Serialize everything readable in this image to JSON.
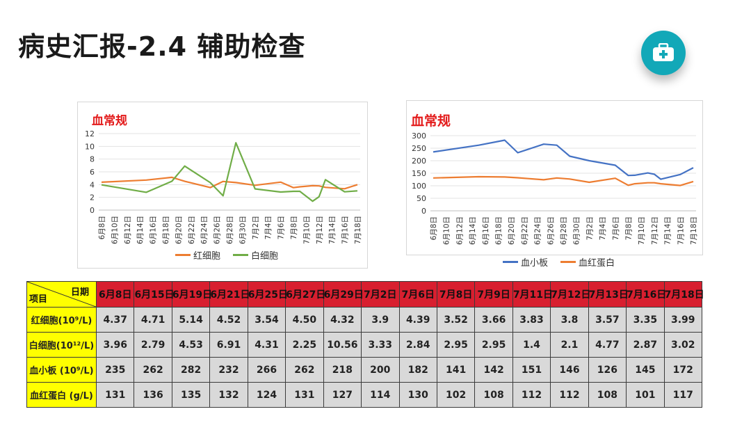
{
  "page": {
    "title": "病史汇报-2.4 辅助检查",
    "icon": "medical-kit-icon"
  },
  "chart_data": [
    {
      "type": "line",
      "title": "血常规",
      "x": [
        "6月8日",
        "6月10日",
        "6月12日",
        "6月14日",
        "6月16日",
        "6月18日",
        "6月20日",
        "6月22日",
        "6月24日",
        "6月26日",
        "6月28日",
        "6月30日",
        "7月2日",
        "7月4日",
        "7月6日",
        "7月8日",
        "7月10日",
        "7月12日",
        "7月14日",
        "7月16日",
        "7月18日"
      ],
      "ylim": [
        0,
        12
      ],
      "yticks": [
        0,
        2,
        4,
        6,
        8,
        10,
        12
      ],
      "grid": true,
      "legend": "bottom",
      "series": [
        {
          "name": "红细胞",
          "color": "#ed7d31",
          "points": [
            [
              0,
              4.37
            ],
            [
              7,
              4.71
            ],
            [
              11,
              5.14
            ],
            [
              13,
              4.52
            ],
            [
              17,
              3.54
            ],
            [
              19,
              4.5
            ],
            [
              21,
              4.32
            ],
            [
              24,
              3.9
            ],
            [
              28,
              4.39
            ],
            [
              30,
              3.52
            ],
            [
              31,
              3.66
            ],
            [
              33,
              3.83
            ],
            [
              34,
              3.8
            ],
            [
              35,
              3.57
            ],
            [
              38,
              3.35
            ],
            [
              40,
              3.99
            ]
          ]
        },
        {
          "name": "白细胞",
          "color": "#70ad47",
          "points": [
            [
              0,
              3.96
            ],
            [
              7,
              2.79
            ],
            [
              11,
              4.53
            ],
            [
              13,
              6.91
            ],
            [
              17,
              4.31
            ],
            [
              19,
              2.25
            ],
            [
              21,
              10.56
            ],
            [
              24,
              3.33
            ],
            [
              28,
              2.84
            ],
            [
              30,
              2.95
            ],
            [
              31,
              2.95
            ],
            [
              33,
              1.4
            ],
            [
              34,
              2.1
            ],
            [
              35,
              4.77
            ],
            [
              38,
              2.87
            ],
            [
              40,
              3.02
            ]
          ]
        }
      ]
    },
    {
      "type": "line",
      "title": "血常规",
      "x": [
        "6月8日",
        "6月10日",
        "6月12日",
        "6月14日",
        "6月16日",
        "6月18日",
        "6月20日",
        "6月22日",
        "6月24日",
        "6月26日",
        "6月28日",
        "6月30日",
        "7月2日",
        "7月4日",
        "7月6日",
        "7月8日",
        "7月10日",
        "7月12日",
        "7月14日",
        "7月16日",
        "7月18日"
      ],
      "ylim": [
        0,
        300
      ],
      "yticks": [
        0,
        50,
        100,
        150,
        200,
        250,
        300
      ],
      "grid": true,
      "legend": "bottom",
      "series": [
        {
          "name": "血小板",
          "color": "#4472c4",
          "points": [
            [
              0,
              235
            ],
            [
              7,
              262
            ],
            [
              11,
              282
            ],
            [
              13,
              232
            ],
            [
              17,
              266
            ],
            [
              19,
              262
            ],
            [
              21,
              218
            ],
            [
              24,
              200
            ],
            [
              28,
              182
            ],
            [
              30,
              141
            ],
            [
              31,
              142
            ],
            [
              33,
              151
            ],
            [
              34,
              146
            ],
            [
              35,
              126
            ],
            [
              38,
              145
            ],
            [
              40,
              172
            ]
          ]
        },
        {
          "name": "血红蛋白",
          "color": "#ed7d31",
          "points": [
            [
              0,
              131
            ],
            [
              7,
              136
            ],
            [
              11,
              135
            ],
            [
              13,
              132
            ],
            [
              17,
              124
            ],
            [
              19,
              131
            ],
            [
              21,
              127
            ],
            [
              24,
              114
            ],
            [
              28,
              130
            ],
            [
              30,
              102
            ],
            [
              31,
              108
            ],
            [
              33,
              112
            ],
            [
              34,
              112
            ],
            [
              35,
              108
            ],
            [
              38,
              101
            ],
            [
              40,
              117
            ]
          ]
        }
      ]
    }
  ],
  "table": {
    "corner_date": "日期",
    "corner_item": "项目",
    "dates": [
      "6月8日",
      "6月15日",
      "6月19日",
      "6月21日",
      "6月25日",
      "6月27日",
      "6月29日",
      "7月2日",
      "7月6日",
      "7月8日",
      "7月9日",
      "7月11日",
      "7月12日",
      "7月13日",
      "7月16日",
      "7月18日"
    ],
    "rows": [
      {
        "label": "红细胞(10⁹/L)",
        "values": [
          "4.37",
          "4.71",
          "5.14",
          "4.52",
          "3.54",
          "4.50",
          "4.32",
          "3.9",
          "4.39",
          "3.52",
          "3.66",
          "3.83",
          "3.8",
          "3.57",
          "3.35",
          "3.99"
        ]
      },
      {
        "label": "白细胞(10¹²/L)",
        "values": [
          "3.96",
          "2.79",
          "4.53",
          "6.91",
          "4.31",
          "2.25",
          "10.56",
          "3.33",
          "2.84",
          "2.95",
          "2.95",
          "1.4",
          "2.1",
          "4.77",
          "2.87",
          "3.02"
        ]
      },
      {
        "label": "血小板 (10⁹/L)",
        "values": [
          "235",
          "262",
          "282",
          "232",
          "266",
          "262",
          "218",
          "200",
          "182",
          "141",
          "142",
          "151",
          "146",
          "126",
          "145",
          "172"
        ]
      },
      {
        "label": "血红蛋白 (g/L)",
        "values": [
          "131",
          "136",
          "135",
          "132",
          "124",
          "131",
          "127",
          "114",
          "130",
          "102",
          "108",
          "112",
          "112",
          "108",
          "101",
          "117"
        ]
      }
    ]
  }
}
